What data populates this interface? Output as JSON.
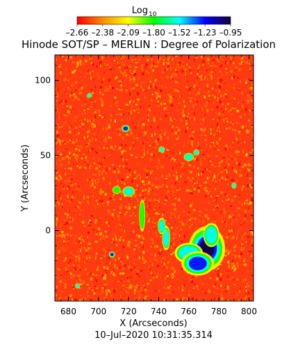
{
  "chart_data": {
    "type": "heatmap",
    "title": "Hinode SOT/SP – MERLIN : Degree of Polarization",
    "colorbar": {
      "label_main": "Log",
      "label_sub": "10",
      "tick_labels": [
        "–2.66",
        "–2.38",
        "–2.09",
        "–1.80",
        "–1.52",
        "–1.23",
        "–0.95"
      ],
      "range": [
        -2.66,
        -0.95
      ],
      "colormap": [
        "#ff0000",
        "#ff8c00",
        "#ffff00",
        "#00ff00",
        "#00ffff",
        "#0000ff",
        "#1a0033"
      ]
    },
    "xlabel": "X (Arcseconds)",
    "ylabel": "Y (Arcseconds)",
    "x_ticks": [
      "680",
      "700",
      "720",
      "740",
      "760",
      "780",
      "800"
    ],
    "x_tick_values": [
      680,
      700,
      720,
      740,
      760,
      780,
      800
    ],
    "y_ticks": [
      "0",
      "50",
      "100"
    ],
    "y_tick_values": [
      0,
      50,
      100
    ],
    "xlim": [
      671,
      803
    ],
    "ylim": [
      -47,
      117
    ],
    "background_color": "#ff3a10",
    "features": [
      {
        "x": 772,
        "y": -12,
        "rx": 9,
        "ry": 11,
        "level": 0.9
      },
      {
        "x": 760,
        "y": -15,
        "rx": 7,
        "ry": 5,
        "level": 0.55
      },
      {
        "x": 766,
        "y": -22,
        "rx": 8,
        "ry": 6,
        "level": 0.75
      },
      {
        "x": 775,
        "y": -3,
        "rx": 4,
        "ry": 6,
        "level": 0.65
      },
      {
        "x": 745,
        "y": -5,
        "rx": 2,
        "ry": 6,
        "level": 0.55
      },
      {
        "x": 742,
        "y": 3,
        "rx": 2,
        "ry": 4,
        "level": 0.5
      },
      {
        "x": 729,
        "y": 10,
        "rx": 1.5,
        "ry": 8,
        "level": 0.45
      },
      {
        "x": 720,
        "y": 26,
        "rx": 3,
        "ry": 2.5,
        "level": 0.55
      },
      {
        "x": 712,
        "y": 27,
        "rx": 2,
        "ry": 2,
        "level": 0.45
      },
      {
        "x": 760,
        "y": 49,
        "rx": 2.5,
        "ry": 2,
        "level": 0.65
      },
      {
        "x": 765,
        "y": 52,
        "rx": 1.5,
        "ry": 1.5,
        "level": 0.6
      },
      {
        "x": 742,
        "y": 54,
        "rx": 1.5,
        "ry": 1.5,
        "level": 0.5
      },
      {
        "x": 718,
        "y": 68,
        "rx": 2,
        "ry": 1.8,
        "level": 0.75
      },
      {
        "x": 709,
        "y": -16,
        "rx": 1.5,
        "ry": 1.5,
        "level": 0.7
      },
      {
        "x": 694,
        "y": 90,
        "rx": 1.2,
        "ry": 1.2,
        "level": 0.5
      },
      {
        "x": 790,
        "y": 30,
        "rx": 1.2,
        "ry": 1.5,
        "level": 0.5
      },
      {
        "x": 686,
        "y": -37,
        "rx": 1.2,
        "ry": 1.2,
        "level": 0.5
      }
    ]
  },
  "timestamp": "10–Jul–2020 10:31:35.314"
}
